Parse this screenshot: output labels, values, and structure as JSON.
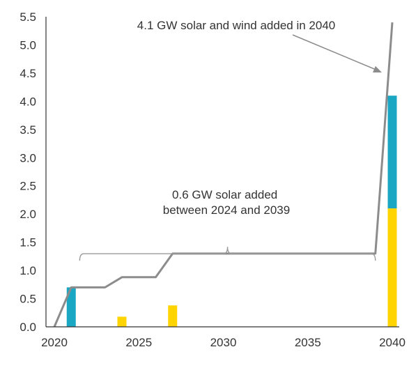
{
  "chart_data": {
    "type": "bar",
    "title": "",
    "xlabel": "",
    "ylabel": "",
    "ylim": [
      0,
      5.5
    ],
    "xlim": [
      2020,
      2040
    ],
    "y_ticks": [
      0.0,
      0.5,
      1.0,
      1.5,
      2.0,
      2.5,
      3.0,
      3.5,
      4.0,
      4.5,
      5.0,
      5.5
    ],
    "y_tick_labels": [
      "0.0",
      "0.5",
      "1.0",
      "1.5",
      "2.0",
      "2.5",
      "3.0",
      "3.5",
      "4.0",
      "4.5",
      "5.0",
      "5.5"
    ],
    "x_ticks": [
      2020,
      2025,
      2030,
      2035,
      2040
    ],
    "x_tick_labels": [
      "2020",
      "2025",
      "2030",
      "2035",
      "2040"
    ],
    "grid": false,
    "colors": {
      "wind_bar": "#1aa7c4",
      "solar_bar": "#ffd400",
      "cumulative_line": "#8c8c8c",
      "bracket": "#9a9a9a",
      "axis": "#333333"
    },
    "series": [
      {
        "kind": "bar",
        "color_key": "wind_bar",
        "points": [
          {
            "x": 2021,
            "base": 0,
            "value": 0.7
          },
          {
            "x": 2040,
            "base": 2.1,
            "value": 2.0
          }
        ]
      },
      {
        "kind": "bar",
        "color_key": "solar_bar",
        "points": [
          {
            "x": 2024,
            "base": 0,
            "value": 0.18
          },
          {
            "x": 2027,
            "base": 0,
            "value": 0.38
          },
          {
            "x": 2040,
            "base": 0,
            "value": 2.1
          }
        ]
      },
      {
        "kind": "line",
        "color_key": "cumulative_line",
        "points": [
          {
            "x": 2020,
            "y": 0.0
          },
          {
            "x": 2021,
            "y": 0.7
          },
          {
            "x": 2023,
            "y": 0.7
          },
          {
            "x": 2024,
            "y": 0.88
          },
          {
            "x": 2026,
            "y": 0.88
          },
          {
            "x": 2027,
            "y": 1.3
          },
          {
            "x": 2039,
            "y": 1.3
          },
          {
            "x": 2040,
            "y": 5.4
          }
        ]
      }
    ],
    "annotations": [
      {
        "lines": [
          "4.1 GW solar and wind added in 2040"
        ]
      },
      {
        "lines": [
          "0.6 GW solar added",
          "between 2024 and 2039"
        ]
      }
    ],
    "bracket": {
      "x_start": 2021.5,
      "x_end": 2039,
      "y": 1.42
    }
  }
}
